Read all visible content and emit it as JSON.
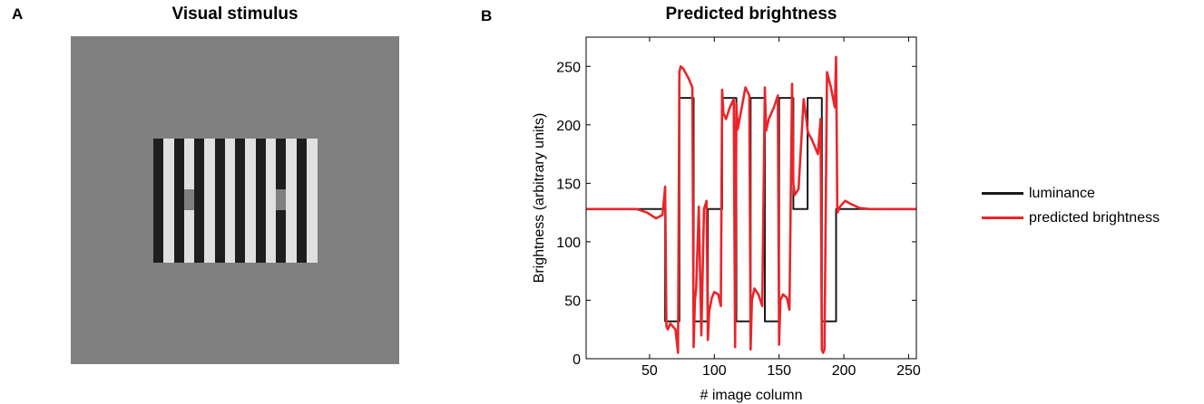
{
  "panels": {
    "a": {
      "letter": "A",
      "title": "Visual stimulus"
    },
    "b": {
      "letter": "B",
      "title": "Predicted brightness"
    }
  },
  "stimulus": {
    "background_color": "#808080",
    "stripe_dark_color": "#1e1e1e",
    "stripe_light_color": "#e0e0e0",
    "stripe_count": 16,
    "gray_patch_stripes": [
      3,
      12
    ]
  },
  "chart_data": {
    "type": "line",
    "title": "Predicted brightness",
    "xlabel": "# image column",
    "ylabel": "Brightness (arbitrary units)",
    "xlim": [
      1,
      256
    ],
    "ylim": [
      0,
      275
    ],
    "xticks": [
      50,
      100,
      150,
      200,
      250
    ],
    "yticks": [
      0,
      50,
      100,
      150,
      200,
      250
    ],
    "grid": false,
    "legend": "right",
    "series": [
      {
        "name": "luminance",
        "color": "#1a1a1a",
        "x": [
          1,
          62,
          62,
          73,
          73,
          84,
          84,
          95,
          95,
          106,
          106,
          117,
          117,
          128,
          128,
          139,
          139,
          150,
          150,
          161,
          161,
          172,
          172,
          183,
          183,
          194,
          194,
          256
        ],
        "y": [
          128,
          128,
          32,
          32,
          223,
          223,
          32,
          32,
          128,
          128,
          223,
          223,
          32,
          32,
          223,
          223,
          32,
          32,
          223,
          223,
          128,
          128,
          223,
          223,
          32,
          32,
          128,
          128
        ]
      },
      {
        "name": "predicted brightness",
        "color": "#e8262a",
        "x": [
          1,
          40,
          48,
          55,
          60,
          62,
          63,
          64,
          66,
          70,
          72,
          73,
          74,
          76,
          80,
          83,
          84,
          85,
          86,
          88,
          90,
          92,
          94,
          95,
          96,
          98,
          100,
          103,
          105,
          106,
          107,
          109,
          112,
          115,
          116,
          117,
          118,
          120,
          124,
          127,
          128,
          129,
          131,
          134,
          137,
          139,
          140,
          142,
          146,
          149,
          150,
          151,
          153,
          156,
          158,
          160,
          161,
          162,
          165,
          169,
          171,
          172,
          173,
          175,
          180,
          182,
          183,
          184,
          185,
          187,
          190,
          193,
          194,
          195,
          197,
          201,
          206,
          212,
          220,
          256
        ],
        "y": [
          128,
          128,
          125,
          120,
          123,
          147,
          28,
          25,
          30,
          25,
          5,
          245,
          250,
          248,
          240,
          232,
          10,
          50,
          60,
          130,
          20,
          128,
          135,
          16,
          40,
          52,
          57,
          55,
          45,
          230,
          210,
          205,
          215,
          222,
          10,
          218,
          196,
          208,
          232,
          225,
          8,
          50,
          60,
          55,
          45,
          232,
          195,
          205,
          215,
          225,
          12,
          50,
          55,
          52,
          42,
          235,
          150,
          140,
          145,
          222,
          205,
          195,
          192,
          188,
          175,
          205,
          8,
          5,
          8,
          245,
          232,
          215,
          258,
          125,
          130,
          135,
          132,
          129,
          128,
          128
        ]
      }
    ]
  }
}
